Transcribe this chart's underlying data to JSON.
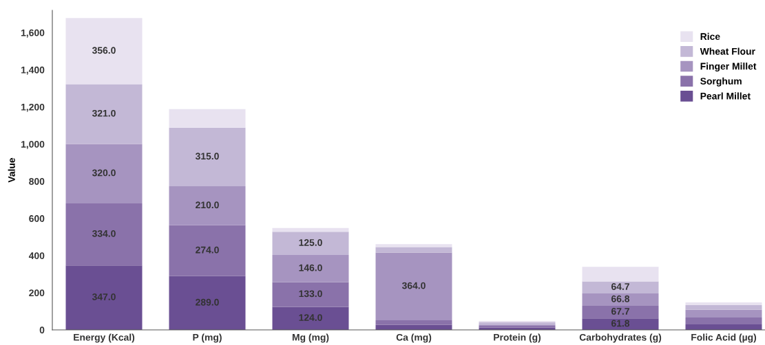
{
  "chart_data": {
    "type": "bar",
    "stacked": true,
    "ylabel": "Value",
    "categories": [
      "Energy (Kcal)",
      "P (mg)",
      "Mg (mg)",
      "Ca (mg)",
      "Protein (g)",
      "Carbohydrates (g)",
      "Folic Acid (µg)"
    ],
    "series": [
      {
        "name": "Pearl Millet",
        "color": "#6a4f93",
        "values": [
          347,
          289,
          124,
          27,
          12,
          61.8,
          30
        ],
        "value_labels": [
          "347.0",
          "289.0",
          "124.0",
          null,
          null,
          "61.8",
          null
        ]
      },
      {
        "name": "Sorghum",
        "color": "#8a72aa",
        "values": [
          334,
          274,
          133,
          25,
          10,
          67.7,
          37
        ],
        "value_labels": [
          "334.0",
          "274.0",
          "133.0",
          null,
          null,
          "67.7",
          null
        ]
      },
      {
        "name": "Finger Millet",
        "color": "#a694c0",
        "values": [
          320,
          210,
          146,
          364,
          7,
          66.8,
          41
        ],
        "value_labels": [
          "320.0",
          "210.0",
          "146.0",
          "364.0",
          null,
          "66.8",
          null
        ]
      },
      {
        "name": "Wheat Flour",
        "color": "#c3b8d6",
        "values": [
          321,
          315,
          125,
          30,
          12,
          64.7,
          25
        ],
        "value_labels": [
          "321.0",
          "315.0",
          "125.0",
          null,
          null,
          "64.7",
          null
        ]
      },
      {
        "name": "Rice",
        "color": "#e8e2f0",
        "values": [
          356,
          100,
          20,
          15,
          7,
          78,
          15
        ],
        "value_labels": [
          "356.0",
          null,
          null,
          null,
          null,
          null,
          null
        ]
      }
    ],
    "ylim": [
      0,
      1720
    ],
    "yticks": [
      0,
      {
        "value": 200,
        "label": "200"
      },
      {
        "value": 400,
        "label": "400"
      },
      {
        "value": 600,
        "label": "600"
      },
      {
        "value": 800,
        "label": "800"
      },
      {
        "value": 1000,
        "label": "1,000"
      },
      {
        "value": 1200,
        "label": "1,200"
      },
      {
        "value": 1400,
        "label": "1,400"
      },
      {
        "value": 1600,
        "label": "1,600"
      }
    ],
    "grid": false,
    "legend": "top right"
  }
}
